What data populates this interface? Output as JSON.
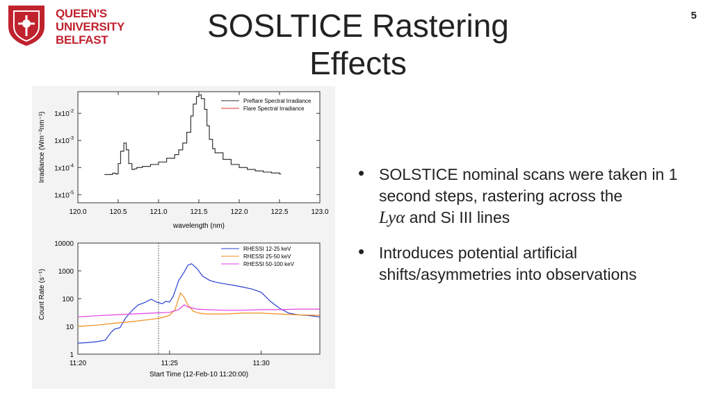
{
  "header": {
    "logo_lines": [
      "QUEEN'S",
      "UNIVERSITY",
      "BELFAST"
    ],
    "title": "SOSLTICE Rastering Effects",
    "page_number": "5"
  },
  "bullets": [
    {
      "before": "SOLSTICE nominal scans were taken in 1 second steps, rastering across the",
      "math": "Lyα",
      "after": "and Si III lines"
    },
    {
      "text": "Introduces potential artificial shifts/asymmetries into observations"
    }
  ],
  "colors": {
    "brand": "#c0222e",
    "preflare": "#333333",
    "flare": "#e03030",
    "rhessi_12_25": "#2a3fd0",
    "rhessi_25_50": "#f08c1a",
    "rhessi_50_100": "#e040e0"
  },
  "chart_data": [
    {
      "type": "line",
      "xlabel": "wavelength (nm)",
      "ylabel": "Irradiance (Wm⁻²nm⁻¹)",
      "xlim": [
        120.0,
        123.0
      ],
      "ylim_log10": [
        -5.3,
        -1.2
      ],
      "y_scale": "log",
      "x_ticks": [
        "120.0",
        "120.5",
        "121.0",
        "121.5",
        "122.0",
        "122.5",
        "123.0"
      ],
      "y_ticks": [
        {
          "base": "1x10",
          "exp": "-2"
        },
        {
          "base": "1x10",
          "exp": "-3"
        },
        {
          "base": "1x10",
          "exp": "-4"
        },
        {
          "base": "1x10",
          "exp": "-5"
        }
      ],
      "legend_position": "top-right",
      "series": [
        {
          "name": "Preflare Spectral Irradiance",
          "step": true,
          "x": [
            120.33,
            120.43,
            120.47,
            120.5,
            120.53,
            120.57,
            120.6,
            120.63,
            120.67,
            120.7,
            120.73,
            120.8,
            120.9,
            121.0,
            121.1,
            121.2,
            121.25,
            121.3,
            121.35,
            121.4,
            121.43,
            121.47,
            121.5,
            121.53,
            121.57,
            121.6,
            121.63,
            121.67,
            121.7,
            121.8,
            121.9,
            122.0,
            122.1,
            122.2,
            122.3,
            122.4,
            122.5,
            122.52
          ],
          "y": [
            5.5e-05,
            6.2e-05,
            5.8e-05,
            0.00014,
            0.0004,
            0.0008,
            0.00045,
            0.00014,
            8.5e-05,
            9e-05,
            0.0001,
            0.00011,
            0.00013,
            0.00016,
            0.00022,
            0.0003,
            0.00045,
            0.0008,
            0.002,
            0.008,
            0.022,
            0.042,
            0.048,
            0.035,
            0.014,
            0.0035,
            0.0011,
            0.0005,
            0.00035,
            0.0002,
            0.00013,
            0.0001,
            8.5e-05,
            7.5e-05,
            6.8e-05,
            6.3e-05,
            5.8e-05,
            5.8e-05
          ]
        },
        {
          "name": "Flare Spectral Irradiance",
          "x": [],
          "y": []
        }
      ]
    },
    {
      "type": "line",
      "xlabel": "Start Time (12-Feb-10 11:20:00)",
      "ylabel": "Count Rate (s⁻¹)",
      "y_scale": "log",
      "x_minutes_from_start_lim": [
        0,
        13.2
      ],
      "ylim": [
        1,
        10000
      ],
      "x_ticks": [
        "11:20",
        "11:25",
        "11:30"
      ],
      "y_ticks": [
        "10000",
        "1000",
        "100",
        "10",
        "1"
      ],
      "annotation": "dotted vertical line near 11:24:25",
      "vline_minute": 4.4,
      "legend_position": "top-right",
      "series": [
        {
          "name": "RHESSI 12-25 keV",
          "x": [
            0,
            0.5,
            1.0,
            1.5,
            1.8,
            2.0,
            2.3,
            2.6,
            3.0,
            3.3,
            3.6,
            4.0,
            4.3,
            4.6,
            4.8,
            5.0,
            5.2,
            5.5,
            5.8,
            6.0,
            6.2,
            6.5,
            6.8,
            7.2,
            7.6,
            8.0,
            8.5,
            9.0,
            9.5,
            10.0,
            10.5,
            11.0,
            11.5,
            12.0,
            12.5,
            13.2
          ],
          "y": [
            2.5,
            2.6,
            2.8,
            3.2,
            6,
            8,
            9,
            20,
            40,
            60,
            70,
            95,
            75,
            65,
            80,
            75,
            120,
            450,
            900,
            1600,
            1800,
            1200,
            650,
            450,
            380,
            340,
            300,
            260,
            220,
            170,
            80,
            45,
            30,
            26,
            25,
            22
          ]
        },
        {
          "name": "RHESSI 25-50 keV",
          "x": [
            0,
            1.0,
            2.0,
            3.0,
            4.0,
            4.5,
            5.0,
            5.3,
            5.6,
            5.8,
            6.0,
            6.3,
            6.6,
            7.0,
            8.0,
            9.0,
            10.0,
            11.0,
            12.0,
            13.2
          ],
          "y": [
            10,
            11,
            13,
            15,
            18,
            20,
            25,
            40,
            160,
            110,
            60,
            35,
            30,
            28,
            28,
            30,
            30,
            28,
            26,
            25
          ]
        },
        {
          "name": "RHESSI 50-100 keV",
          "x": [
            0,
            1.0,
            2.0,
            3.0,
            4.0,
            5.0,
            5.5,
            5.8,
            6.0,
            6.5,
            7.0,
            8.0,
            9.0,
            10.0,
            11.0,
            12.0,
            13.2
          ],
          "y": [
            22,
            24,
            26,
            28,
            30,
            32,
            40,
            60,
            50,
            42,
            40,
            38,
            38,
            40,
            40,
            42,
            42
          ]
        }
      ]
    }
  ]
}
